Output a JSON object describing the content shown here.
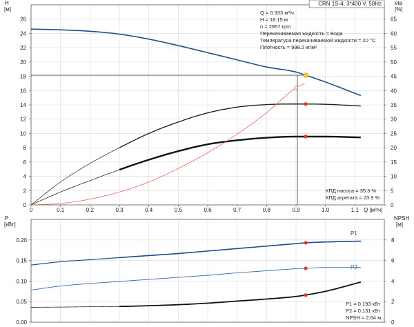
{
  "chart_data": [
    {
      "type": "line",
      "title": "CRN 1S-4, 3*400 V, 50Hz",
      "xlabel": "Q [м³/ч]",
      "xlim": [
        0,
        1.2
      ],
      "x_ticks": [
        "0",
        "0.1",
        "0.2",
        "0.3",
        "0.4",
        "0.5",
        "0.6",
        "0.7",
        "0.8",
        "0.9",
        "1.0",
        "1.1"
      ],
      "left_axis": {
        "label_top": "H",
        "label_unit": "[м]",
        "ylim": [
          0,
          28
        ],
        "ticks": [
          "0",
          "2",
          "4",
          "6",
          "8",
          "10",
          "12",
          "14",
          "16",
          "18",
          "20",
          "22",
          "24",
          "26"
        ]
      },
      "right_axis": {
        "label_top": "eta",
        "label_unit": "[%]",
        "ylim": [
          0,
          70
        ],
        "ticks": [
          "0",
          "5",
          "10",
          "15",
          "20",
          "25",
          "30",
          "35",
          "40",
          "45",
          "50",
          "55",
          "60",
          "65"
        ]
      },
      "series": [
        {
          "axis": "left",
          "color": "#1f4e8c",
          "x": [
            0,
            0.1,
            0.2,
            0.3,
            0.4,
            0.5,
            0.6,
            0.7,
            0.8,
            0.9,
            0.933,
            1.0,
            1.12
          ],
          "y": [
            24.6,
            24.5,
            24.3,
            23.9,
            23.2,
            22.3,
            21.3,
            20.3,
            19.3,
            18.6,
            18.15,
            17.2,
            15.3
          ]
        },
        {
          "axis": "right",
          "color": "#222222",
          "x": [
            0,
            0.1,
            0.2,
            0.3,
            0.4,
            0.5,
            0.6,
            0.7,
            0.8,
            0.9,
            0.933,
            1.0,
            1.12
          ],
          "y": [
            0,
            8,
            14.5,
            20,
            25,
            29,
            32.2,
            34.2,
            35.1,
            35.3,
            35.3,
            35.2,
            34.6
          ]
        },
        {
          "axis": "right",
          "color": "#111111",
          "x": [
            0,
            0.1,
            0.2,
            0.3,
            0.4,
            0.5,
            0.6,
            0.7,
            0.8,
            0.9,
            0.933,
            1.0,
            1.12
          ],
          "y": [
            0,
            4.5,
            8.5,
            12.3,
            15.8,
            18.8,
            21.2,
            22.6,
            23.5,
            23.9,
            23.9,
            23.9,
            23.6
          ]
        },
        {
          "axis": "left",
          "color": "#e8665c",
          "x": [
            0,
            0.1,
            0.2,
            0.3,
            0.4,
            0.5,
            0.6,
            0.7,
            0.8,
            0.9,
            0.93
          ],
          "y": [
            0,
            0.2,
            0.8,
            1.8,
            3.2,
            5.1,
            7.3,
            9.9,
            12.9,
            16.4,
            17.0
          ]
        }
      ],
      "operating_point": {
        "q": 0.933,
        "h": 18.15
      },
      "info_lines": [
        "Q = 0.933 м³/ч",
        "H = 18.15 м",
        "n = 2957 rpm",
        "Перекачиваемая жидкость = Вода",
        "Температура перекачиваемой жидкости = 20 °C",
        "Плотность = 998.2 кг/м³"
      ],
      "bottom_notes": [
        "КПД насоса = 35.3 %",
        "КПД агрегата = 23.9 %"
      ]
    },
    {
      "type": "line",
      "xlim": [
        0,
        1.2
      ],
      "left_axis": {
        "label_top": "P",
        "label_unit": "[кВт]",
        "ylim": [
          0,
          0.25
        ],
        "ticks": [
          "0.00",
          "0.05",
          "0.10",
          "0.15",
          "0.20"
        ]
      },
      "right_axis": {
        "label_top": "NPSH",
        "label_unit": "[м]",
        "ylim": [
          0,
          10
        ],
        "ticks": [
          "0",
          "2",
          "4",
          "6",
          "8"
        ]
      },
      "series": [
        {
          "name": "P1",
          "axis": "left",
          "color": "#1f4e8c",
          "x": [
            0,
            0.1,
            0.2,
            0.3,
            0.4,
            0.5,
            0.6,
            0.7,
            0.8,
            0.9,
            0.933,
            1.0,
            1.12
          ],
          "y": [
            0.139,
            0.147,
            0.152,
            0.157,
            0.162,
            0.167,
            0.173,
            0.179,
            0.185,
            0.191,
            0.193,
            0.195,
            0.197
          ]
        },
        {
          "name": "P2",
          "axis": "left",
          "color": "#3a6aa8",
          "x": [
            0,
            0.1,
            0.2,
            0.3,
            0.4,
            0.5,
            0.6,
            0.7,
            0.8,
            0.9,
            0.933,
            1.0,
            1.12
          ],
          "y": [
            0.078,
            0.088,
            0.094,
            0.099,
            0.104,
            0.109,
            0.114,
            0.12,
            0.125,
            0.13,
            0.131,
            0.133,
            0.133
          ]
        },
        {
          "axis": "right",
          "color": "#111111",
          "x": [
            0,
            0.1,
            0.2,
            0.3,
            0.4,
            0.5,
            0.6,
            0.7,
            0.8,
            0.9,
            0.933,
            1.0,
            1.12
          ],
          "y": [
            1.45,
            1.47,
            1.5,
            1.53,
            1.6,
            1.7,
            1.85,
            2.05,
            2.25,
            2.5,
            2.64,
            3.0,
            3.9
          ]
        }
      ],
      "operating_point": {
        "p1": 0.193,
        "p2": 0.131,
        "npsh": 2.64
      },
      "bottom_notes": [
        "P1 = 0.193 кВт",
        "P2 = 0.131 кВт",
        "NPSH = 2.64 м"
      ]
    }
  ]
}
